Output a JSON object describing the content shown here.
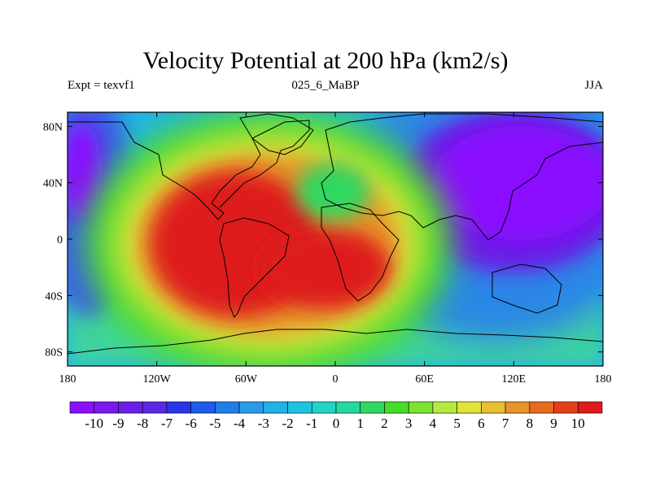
{
  "title": "Velocity Potential at 200 hPa (km2/s)",
  "subtitle_left": "Expt = texvf1",
  "subtitle_center": "025_6_MaBP",
  "subtitle_right": "JJA",
  "x_ticks": [
    "180",
    "120W",
    "60W",
    "0",
    "60E",
    "120E",
    "180"
  ],
  "y_ticks": [
    "80N",
    "40N",
    "0",
    "40S",
    "80S"
  ],
  "colorbar": {
    "labels": [
      "-10",
      "-9",
      "-8",
      "-7",
      "-6",
      "-5",
      "-4",
      "-3",
      "-2",
      "-1",
      "0",
      "1",
      "2",
      "3",
      "4",
      "5",
      "6",
      "7",
      "8",
      "9",
      "10"
    ],
    "colors": [
      "#8a10ff",
      "#7a18ee",
      "#6b1fe6",
      "#5a2ae0",
      "#2a35e8",
      "#1e5be8",
      "#1f7ee6",
      "#2a9be6",
      "#23b1e6",
      "#1dc4e2",
      "#23d3c8",
      "#25d8a0",
      "#2fd860",
      "#45dc2a",
      "#7ee230",
      "#b7e840",
      "#dfe33a",
      "#e6c030",
      "#e6952a",
      "#e66a20",
      "#e2401a",
      "#de1a1a"
    ]
  },
  "colors": {
    "min": "#8a10ff",
    "max": "#de1a1a"
  }
}
